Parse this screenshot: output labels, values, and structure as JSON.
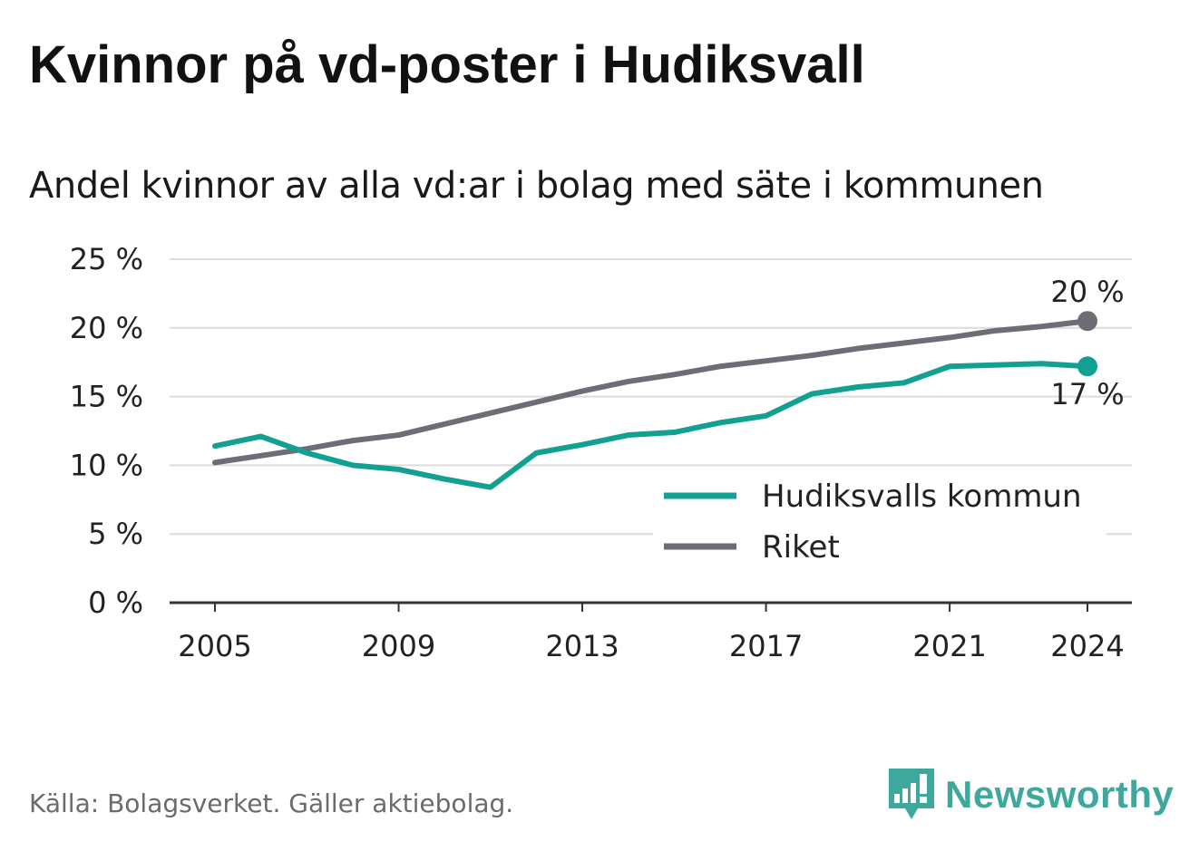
{
  "title": "Kvinnor på vd-poster i Hudiksvall",
  "subtitle": "Andel kvinnor av alla vd:ar i bolag med säte i kommunen",
  "source": "Källa: Bolagsverket. Gäller aktiebolag.",
  "brand": {
    "name": "Newsworthy",
    "icon": "newsworthy-logo-icon",
    "color": "#3fa89c"
  },
  "chart_data": {
    "type": "line",
    "x": [
      2005,
      2006,
      2007,
      2008,
      2009,
      2010,
      2011,
      2012,
      2013,
      2014,
      2015,
      2016,
      2017,
      2018,
      2019,
      2020,
      2021,
      2022,
      2023,
      2024
    ],
    "series": [
      {
        "name": "Hudiksvalls kommun",
        "color": "#12a093",
        "values": [
          11.4,
          12.1,
          10.9,
          10.0,
          9.7,
          9.0,
          8.4,
          10.9,
          11.5,
          12.2,
          12.4,
          13.1,
          13.6,
          15.2,
          15.7,
          16.0,
          17.2,
          17.3,
          17.4,
          17.2
        ],
        "end_label": "17 %"
      },
      {
        "name": "Riket",
        "color": "#6e6d75",
        "values": [
          10.2,
          10.7,
          11.2,
          11.8,
          12.2,
          13.0,
          13.8,
          14.6,
          15.4,
          16.1,
          16.6,
          17.2,
          17.6,
          18.0,
          18.5,
          18.9,
          19.3,
          19.8,
          20.1,
          20.5
        ],
        "end_label": "20 %"
      }
    ],
    "ylim": [
      0,
      25
    ],
    "yticks": [
      0,
      5,
      10,
      15,
      20,
      25
    ],
    "ytick_labels": [
      "0 %",
      "5 %",
      "10 %",
      "15 %",
      "20 %",
      "25 %"
    ],
    "xticks": [
      2005,
      2009,
      2013,
      2017,
      2021,
      2024
    ],
    "xtick_labels": [
      "2005",
      "2009",
      "2013",
      "2017",
      "2021",
      "2024"
    ],
    "grid": true,
    "legend": "right"
  }
}
